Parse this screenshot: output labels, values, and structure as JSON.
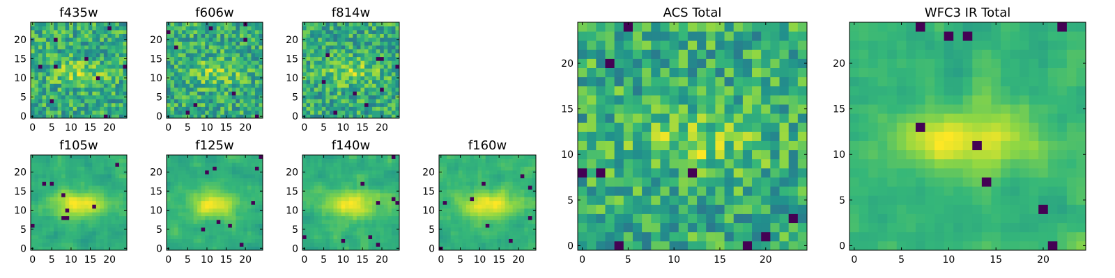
{
  "chart_data": [
    {
      "type": "heatmap",
      "title": "f435w",
      "size": 25,
      "seed": 11,
      "smooth": 0,
      "xticks": [
        0,
        5,
        10,
        15,
        20
      ],
      "yticks": [
        0,
        5,
        10,
        15,
        20
      ],
      "xlim": [
        0,
        25
      ],
      "ylim": [
        0,
        25
      ]
    },
    {
      "type": "heatmap",
      "title": "f606w",
      "size": 25,
      "seed": 23,
      "smooth": 0,
      "xticks": [
        0,
        5,
        10,
        15,
        20
      ],
      "yticks": [
        0,
        5,
        10,
        15,
        20
      ],
      "xlim": [
        0,
        25
      ],
      "ylim": [
        0,
        25
      ]
    },
    {
      "type": "heatmap",
      "title": "f814w",
      "size": 25,
      "seed": 37,
      "smooth": 0,
      "xticks": [
        0,
        5,
        10,
        15,
        20
      ],
      "yticks": [
        0,
        5,
        10,
        15,
        20
      ],
      "xlim": [
        0,
        25
      ],
      "ylim": [
        0,
        25
      ]
    },
    {
      "type": "heatmap",
      "title": "f105w",
      "size": 25,
      "seed": 41,
      "smooth": 1,
      "xticks": [
        0,
        5,
        10,
        15,
        20
      ],
      "yticks": [
        0,
        5,
        10,
        15,
        20
      ],
      "xlim": [
        0,
        25
      ],
      "ylim": [
        0,
        25
      ]
    },
    {
      "type": "heatmap",
      "title": "f125w",
      "size": 25,
      "seed": 53,
      "smooth": 1,
      "xticks": [
        0,
        5,
        10,
        15,
        20
      ],
      "yticks": [
        0,
        5,
        10,
        15,
        20
      ],
      "xlim": [
        0,
        25
      ],
      "ylim": [
        0,
        25
      ]
    },
    {
      "type": "heatmap",
      "title": "f140w",
      "size": 25,
      "seed": 67,
      "smooth": 1,
      "xticks": [
        0,
        5,
        10,
        15,
        20
      ],
      "yticks": [
        0,
        5,
        10,
        15,
        20
      ],
      "xlim": [
        0,
        25
      ],
      "ylim": [
        0,
        25
      ]
    },
    {
      "type": "heatmap",
      "title": "f160w",
      "size": 25,
      "seed": 79,
      "smooth": 1,
      "xticks": [
        0,
        5,
        10,
        15,
        20
      ],
      "yticks": [
        0,
        5,
        10,
        15,
        20
      ],
      "xlim": [
        0,
        25
      ],
      "ylim": [
        0,
        25
      ]
    },
    {
      "type": "heatmap",
      "title": "ACS Total",
      "size": 25,
      "seed": 91,
      "smooth": 0,
      "xticks": [
        0,
        5,
        10,
        15,
        20
      ],
      "yticks": [
        0,
        5,
        10,
        15,
        20
      ],
      "xlim": [
        0,
        25
      ],
      "ylim": [
        0,
        25
      ]
    },
    {
      "type": "heatmap",
      "title": "WFC3 IR Total",
      "size": 25,
      "seed": 103,
      "smooth": 1,
      "xticks": [
        0,
        5,
        10,
        15,
        20
      ],
      "yticks": [
        0,
        5,
        10,
        15,
        20
      ],
      "xlim": [
        0,
        25
      ],
      "ylim": [
        0,
        25
      ]
    }
  ],
  "colors": {
    "colormap": "viridis",
    "stops": [
      "#440154",
      "#31688e",
      "#21918c",
      "#35b779",
      "#90d743",
      "#fde725"
    ]
  }
}
